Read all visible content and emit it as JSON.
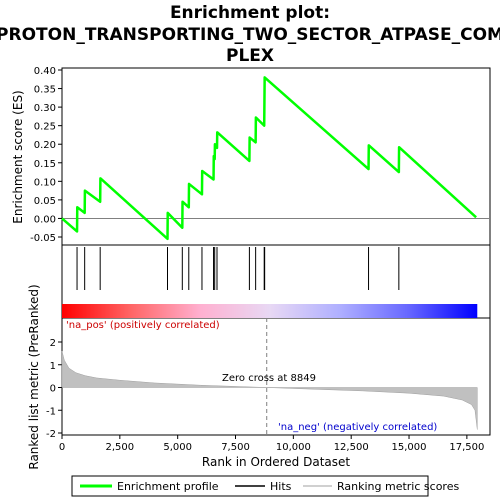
{
  "chart_data": {
    "type": "line",
    "title_lines": [
      "Enrichment plot:",
      "PROTON_TRANSPORTING_TWO_SECTOR_ATPASE_COM",
      "PLEX"
    ],
    "panels": {
      "enrichment": {
        "ylabel": "Enrichment score (ES)",
        "ylim": [
          -0.07,
          0.4
        ],
        "yticks": [
          "0.40",
          "0.35",
          "0.30",
          "0.25",
          "0.20",
          "0.15",
          "0.10",
          "0.05",
          "0.00",
          "-0.05"
        ],
        "ytick_values": [
          0.4,
          0.35,
          0.3,
          0.25,
          0.2,
          0.15,
          0.1,
          0.05,
          0.0,
          -0.05
        ],
        "series": {
          "name": "Enrichment profile",
          "color": "#00ff00",
          "x": [
            0,
            650,
            660,
            980,
            990,
            1650,
            1660,
            4560,
            4570,
            5200,
            5210,
            5480,
            5490,
            6050,
            6060,
            6550,
            6560,
            6600,
            6610,
            6700,
            6710,
            8100,
            8110,
            8370,
            8380,
            8740,
            8750,
            8760,
            13250,
            13260,
            14560,
            14570,
            17900
          ],
          "y": [
            0.0,
            -0.035,
            0.03,
            0.015,
            0.075,
            0.045,
            0.108,
            -0.055,
            0.015,
            -0.025,
            0.045,
            0.03,
            0.093,
            0.065,
            0.128,
            0.105,
            0.168,
            0.16,
            0.2,
            0.19,
            0.232,
            0.155,
            0.218,
            0.205,
            0.272,
            0.25,
            0.315,
            0.38,
            0.133,
            0.197,
            0.125,
            0.192,
            0.003
          ]
        }
      },
      "hits": {
        "x": [
          650,
          980,
          1650,
          4560,
          5200,
          5480,
          6050,
          6550,
          6600,
          6700,
          8100,
          8370,
          8740,
          8760,
          13250,
          14560
        ]
      },
      "ranked_metric": {
        "ylabel": "Ranked list metric (PreRanked)",
        "xlabel": "Rank in Ordered Dataset",
        "ylim": [
          -2,
          2.5
        ],
        "yticks": [
          "2",
          "1",
          "0",
          "-1",
          "-2"
        ],
        "ytick_values": [
          2,
          1,
          0,
          -1,
          -2
        ],
        "xlim": [
          0,
          18500
        ],
        "xticks": [
          "0",
          "2,500",
          "5,000",
          "7,500",
          "10,000",
          "12,500",
          "15,000",
          "17,500"
        ],
        "xtick_values": [
          0,
          2500,
          5000,
          7500,
          10000,
          12500,
          15000,
          17500
        ],
        "zero_cross_label": "Zero cross at 8849",
        "zero_cross_x": 8849,
        "pos_label": "'na_pos' (positively correlated)",
        "neg_label": "'na_neg' (negatively correlated)",
        "series": {
          "name": "Ranking metric scores",
          "color": "#c0c0c0",
          "x": [
            0,
            100,
            300,
            600,
            1000,
            1500,
            2500,
            4000,
            6000,
            8849,
            11000,
            13000,
            15000,
            16500,
            17300,
            17700,
            17850,
            17950
          ],
          "y": [
            1.6,
            1.2,
            0.85,
            0.65,
            0.52,
            0.42,
            0.32,
            0.2,
            0.1,
            0.0,
            -0.08,
            -0.15,
            -0.25,
            -0.38,
            -0.55,
            -0.75,
            -1.0,
            -1.85
          ]
        }
      }
    },
    "gradient_band": {
      "colors": [
        "#ff0000",
        "#ff6666",
        "#ffb0d0",
        "#e8d8f4",
        "#b0b0ff",
        "#6868ff",
        "#0000ff"
      ]
    },
    "legend": [
      {
        "label": "Enrichment profile",
        "color": "#00ff00"
      },
      {
        "label": "Hits",
        "color": "#000000"
      },
      {
        "label": "Ranking metric scores",
        "color": "#c0c0c0"
      }
    ]
  }
}
